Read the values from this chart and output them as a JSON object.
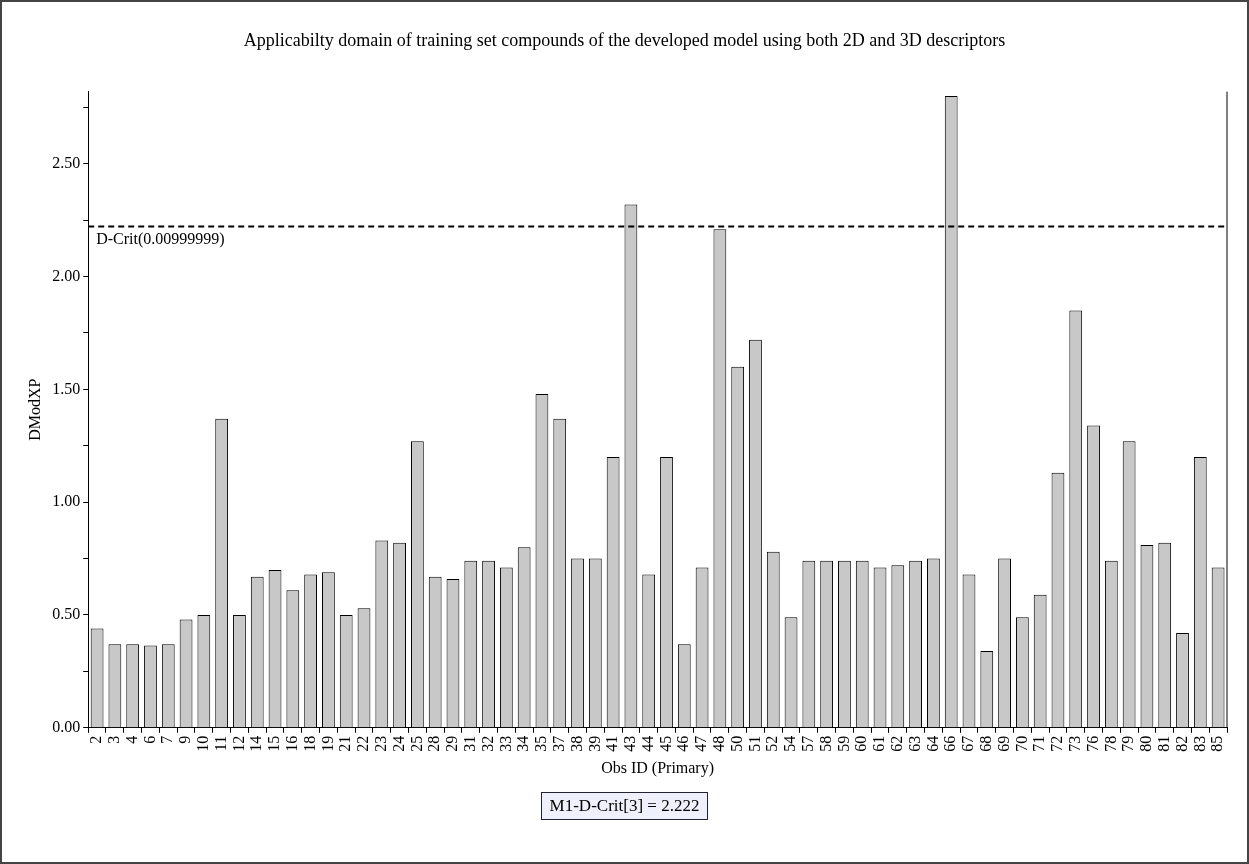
{
  "chart_data": {
    "type": "bar",
    "title": "Applicabilty domain of training set compounds of the developed model using both 2D and 3D descriptors",
    "xlabel": "Obs ID (Primary)",
    "ylabel": "DModXP",
    "categories": [
      "2",
      "3",
      "4",
      "6",
      "7",
      "9",
      "10",
      "11",
      "12",
      "14",
      "15",
      "16",
      "18",
      "19",
      "21",
      "22",
      "23",
      "24",
      "25",
      "28",
      "29",
      "31",
      "32",
      "33",
      "34",
      "35",
      "37",
      "38",
      "39",
      "41",
      "43",
      "44",
      "45",
      "46",
      "47",
      "48",
      "50",
      "51",
      "52",
      "54",
      "57",
      "58",
      "59",
      "60",
      "61",
      "62",
      "63",
      "64",
      "66",
      "67",
      "68",
      "69",
      "70",
      "71",
      "72",
      "73",
      "76",
      "78",
      "79",
      "80",
      "81",
      "82",
      "83",
      "85"
    ],
    "values": [
      0.44,
      0.37,
      0.37,
      0.365,
      0.37,
      0.48,
      0.5,
      1.37,
      0.5,
      0.67,
      0.7,
      0.61,
      0.68,
      0.69,
      0.5,
      0.53,
      0.83,
      0.82,
      1.27,
      0.67,
      0.66,
      0.74,
      0.74,
      0.71,
      0.8,
      1.48,
      1.37,
      0.75,
      0.75,
      1.2,
      2.32,
      0.68,
      1.2,
      0.37,
      0.71,
      2.21,
      1.6,
      1.72,
      0.78,
      0.49,
      0.74,
      0.74,
      0.74,
      0.74,
      0.71,
      0.72,
      0.74,
      0.75,
      2.8,
      0.68,
      0.34,
      0.75,
      0.49,
      0.59,
      1.13,
      1.85,
      1.34,
      0.74,
      1.27,
      0.81,
      0.82,
      0.42,
      1.2,
      0.71
    ],
    "color": "#c8c8c8",
    "ylim": [
      0,
      2.82
    ],
    "yticks": [
      {
        "value": 0,
        "label": "0.00"
      },
      {
        "value": 0.25,
        "label": null
      },
      {
        "value": 0.5,
        "label": "0.50"
      },
      {
        "value": 0.75,
        "label": null
      },
      {
        "value": 1,
        "label": "1.00"
      },
      {
        "value": 1.25,
        "label": null
      },
      {
        "value": 1.5,
        "label": "1.50"
      },
      {
        "value": 1.75,
        "label": null
      },
      {
        "value": 2,
        "label": "2.00"
      },
      {
        "value": 2.25,
        "label": null
      },
      {
        "value": 2.5,
        "label": "2.50"
      },
      {
        "value": 2.75,
        "label": null
      }
    ],
    "ref_lines": [
      {
        "axis": "y",
        "value": 2.222,
        "label": "D-Crit(0.00999999)",
        "line_style": "dashed",
        "color": "#000000"
      }
    ],
    "annotations": [
      "M1-D-Crit[3] = 2.222"
    ],
    "grid": false,
    "legend": false
  }
}
